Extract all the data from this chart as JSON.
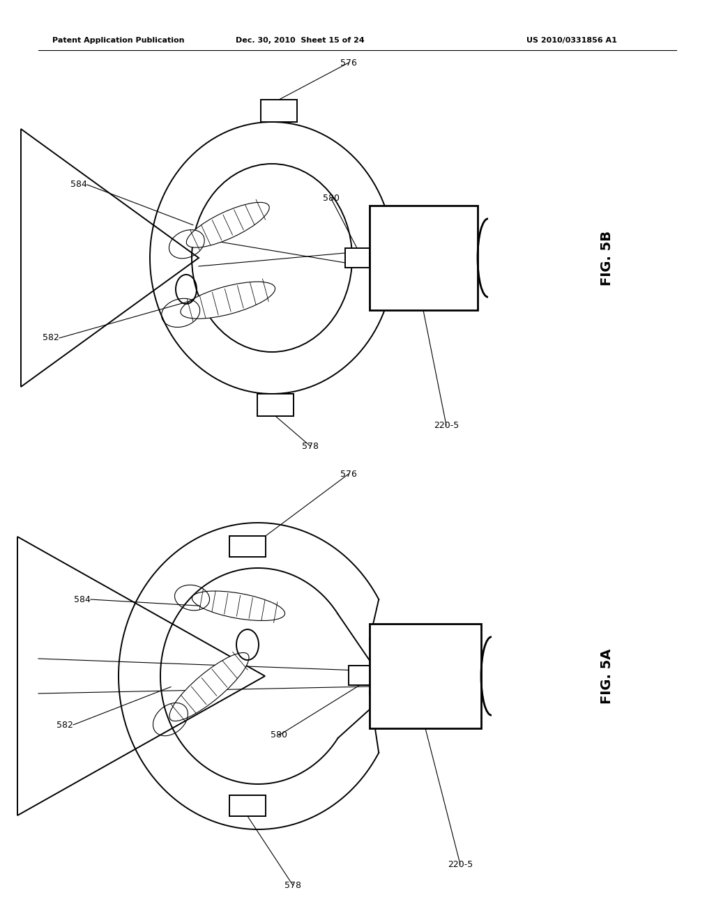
{
  "background_color": "#ffffff",
  "header_left": "Patent Application Publication",
  "header_mid": "Dec. 30, 2010  Sheet 15 of 24",
  "header_right": "US 2010/0331856 A1",
  "fig_5b_label": "FIG. 5B",
  "fig_5a_label": "FIG. 5A",
  "line_color": "#000000",
  "lw_main": 1.4,
  "lw_thick": 2.0,
  "lw_thin": 0.8,
  "font_size_label": 11,
  "font_size_ref": 9,
  "font_size_header": 8
}
